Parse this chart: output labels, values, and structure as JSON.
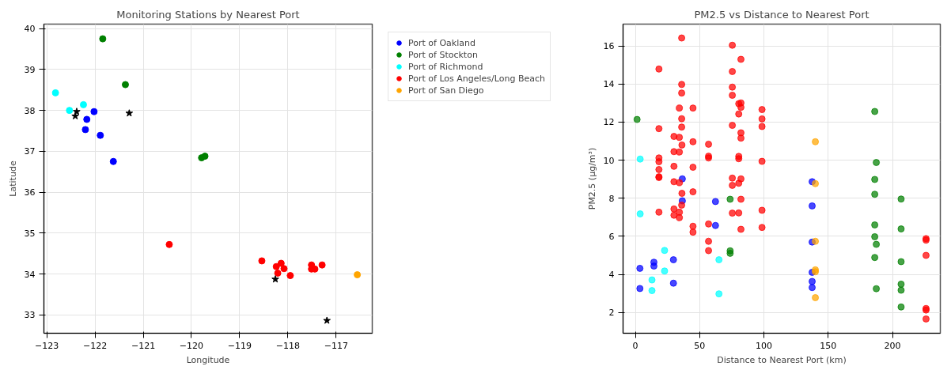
{
  "chart_data": [
    {
      "type": "scatter",
      "title": "Monitoring Stations by Nearest Port",
      "xlabel": "Longitude",
      "ylabel": "Latitude",
      "xlim": [
        -123.06,
        -116.25
      ],
      "ylim": [
        32.55,
        40.11
      ],
      "xticks": [
        {
          "value": -123,
          "label": "−123"
        },
        {
          "value": -122,
          "label": "−122"
        },
        {
          "value": -121,
          "label": "−121"
        },
        {
          "value": -120,
          "label": "−120"
        },
        {
          "value": -119,
          "label": "−119"
        },
        {
          "value": -118,
          "label": "−118"
        },
        {
          "value": -117,
          "label": "−117"
        }
      ],
      "yticks": [
        33,
        34,
        35,
        36,
        37,
        38,
        39,
        40
      ],
      "grid": true,
      "legend": "right",
      "marker": "circle",
      "series": [
        {
          "name": "Port of Oakland",
          "color": "#0000ff",
          "x": [
            -122.02,
            -122.17,
            -122.2,
            -121.89,
            -121.62
          ],
          "values": [
            37.97,
            37.78,
            37.53,
            37.39,
            36.75
          ]
        },
        {
          "name": "Port of Stockton",
          "color": "#008000",
          "x": [
            -121.84,
            -121.37,
            -119.79,
            -119.72
          ],
          "values": [
            39.75,
            38.63,
            36.84,
            36.88
          ]
        },
        {
          "name": "Port of Richmond",
          "color": "#00ffff",
          "x": [
            -122.82,
            -122.53,
            -122.24
          ],
          "values": [
            38.43,
            38.0,
            38.14
          ]
        },
        {
          "name": "Port of Los Angeles/Long Beach",
          "color": "#ff0000",
          "x": [
            -120.46,
            -118.54,
            -118.24,
            -118.14,
            -118.08,
            -118.21,
            -117.95,
            -117.51,
            -117.51,
            -117.44,
            -117.29
          ],
          "values": [
            34.72,
            34.32,
            34.18,
            34.26,
            34.13,
            34.02,
            33.96,
            34.22,
            34.12,
            34.12,
            34.22
          ]
        },
        {
          "name": "Port of San Diego",
          "color": "#ffa500",
          "x": [
            -116.56
          ],
          "values": [
            33.98
          ]
        },
        {
          "color": "#000000",
          "marker": "star",
          "x": [
            -122.38,
            -122.41,
            -121.29,
            -118.26,
            -117.19
          ],
          "values": [
            37.97,
            37.86,
            37.93,
            33.87,
            32.86
          ]
        }
      ]
    },
    {
      "type": "scatter",
      "title": "PM2.5 vs Distance to Nearest Port",
      "xlabel": "Distance to Nearest Port (km)",
      "ylabel": "PM2.5 (µg/m³)",
      "xlim": [
        -9.6,
        237.2
      ],
      "ylim": [
        0.91,
        17.15
      ],
      "xticks": [
        0,
        50,
        100,
        150,
        200
      ],
      "yticks": [
        2,
        4,
        6,
        8,
        10,
        12,
        14,
        16
      ],
      "grid": true,
      "marker": "circle",
      "series": [
        {
          "color": "#0000ff",
          "x": [
            3.5,
            3.5,
            14.4,
            14.4,
            29.6,
            29.6,
            36.5,
            36.5,
            62.3,
            62.3,
            137.5,
            137.5,
            137.5,
            137.5,
            137.5,
            137.5
          ],
          "values": [
            4.32,
            3.26,
            4.64,
            4.44,
            4.77,
            3.54,
            9.02,
            7.87,
            7.83,
            6.57,
            8.87,
            7.6,
            5.7,
            4.11,
            3.63,
            3.31
          ]
        },
        {
          "color": "#008000",
          "x": [
            1.3,
            73.7,
            73.7,
            73.7,
            186.2,
            187.4,
            186.2,
            186.2,
            186.2,
            186.2,
            187.4,
            186.2,
            187.4,
            206.7,
            206.7,
            206.7,
            206.7,
            206.7,
            206.7
          ],
          "values": [
            12.14,
            7.95,
            5.24,
            5.11,
            12.56,
            9.88,
            8.99,
            8.21,
            6.6,
            5.98,
            5.58,
            4.89,
            3.25,
            7.96,
            6.39,
            4.67,
            3.49,
            3.17,
            2.29
          ]
        },
        {
          "color": "#00ffff",
          "x": [
            3.7,
            3.7,
            22.7,
            22.7,
            12.9,
            12.9,
            65.0,
            65.0
          ],
          "values": [
            10.06,
            7.18,
            5.26,
            4.18,
            3.71,
            3.15,
            4.77,
            2.98
          ]
        },
        {
          "color": "#ff0000",
          "x": [
            36,
            18.3,
            36,
            36,
            34.2,
            36,
            36,
            18.3,
            30,
            34.2,
            36.2,
            30,
            34.2,
            18.3,
            18.3,
            30,
            18.3,
            18.3,
            18.3,
            30,
            34.2,
            36.2,
            36,
            18.3,
            30,
            30,
            34.2,
            34.2,
            44.8,
            44.8,
            44.8,
            44.8,
            44.8,
            44.8,
            56.9,
            56.9,
            56.9,
            56.9,
            56.9,
            56.9,
            75.4,
            75.4,
            75.4,
            75.4,
            75.4,
            75.4,
            75.4,
            75.4,
            82.1,
            80.4,
            82.1,
            82.1,
            80.4,
            82.1,
            82.1,
            80.4,
            80.4,
            80.4,
            82.1,
            82.1,
            80.4,
            82.1,
            98.5,
            98.5,
            98.5,
            98.5,
            98.5,
            98.5,
            226.1,
            226.1,
            226.1,
            226.1,
            226.1,
            226.1
          ],
          "values": [
            16.42,
            14.79,
            13.98,
            13.53,
            12.74,
            12.18,
            11.74,
            11.66,
            11.25,
            11.2,
            10.8,
            10.45,
            10.43,
            10.12,
            9.92,
            9.68,
            9.51,
            9.13,
            9.09,
            8.87,
            8.82,
            8.26,
            7.64,
            7.27,
            7.44,
            7.11,
            7.27,
            6.98,
            12.74,
            10.97,
            9.63,
            8.34,
            6.53,
            6.22,
            10.84,
            10.21,
            10.12,
            6.65,
            5.74,
            5.25,
            16.04,
            14.66,
            13.84,
            13.41,
            11.83,
            9.06,
            8.68,
            7.22,
            15.3,
            12.97,
            13.01,
            12.78,
            12.43,
            11.44,
            11.16,
            10.2,
            10.08,
            8.79,
            9.02,
            7.95,
            7.23,
            6.37,
            12.66,
            12.17,
            11.77,
            9.94,
            7.37,
            6.47,
            5.88,
            5.8,
            5.0,
            2.21,
            2.13,
            1.66
          ]
        },
        {
          "color": "#ffa500",
          "x": [
            140,
            140,
            140,
            140,
            140,
            140
          ],
          "values": [
            10.97,
            8.77,
            5.74,
            4.24,
            4.14,
            2.78
          ]
        }
      ]
    }
  ]
}
